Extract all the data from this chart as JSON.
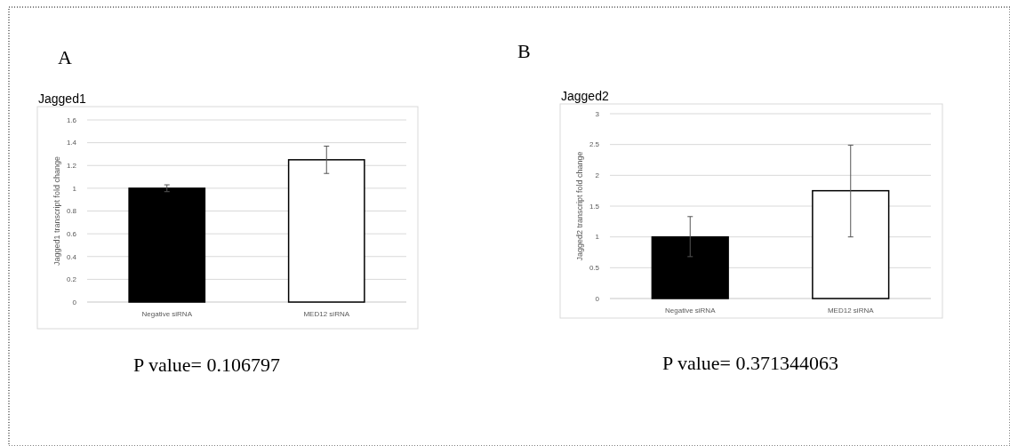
{
  "chart_data": [
    {
      "type": "bar",
      "title": "Jagged1",
      "ylabel": "Jagged1 transcript fold change",
      "categories": [
        "Negative siRNA",
        "MED12 siRNA"
      ],
      "values": [
        1.0,
        1.25
      ],
      "colors": [
        "#000000",
        "#ffffff"
      ],
      "errors": [
        [
          0.97,
          1.03
        ],
        [
          1.13,
          1.37
        ]
      ],
      "ylim": [
        0,
        1.6
      ],
      "yticks": [
        0,
        0.2,
        0.4,
        0.6,
        0.8,
        1,
        1.2,
        1.4,
        1.6
      ],
      "grid": "y",
      "annotations": [
        "A",
        "P value= 0.106797"
      ]
    },
    {
      "type": "bar",
      "title": "Jagged2",
      "ylabel": "Jagged2 transcript fold change",
      "categories": [
        "Negative siRNA",
        "MED12 siRNA"
      ],
      "values": [
        1.0,
        1.75
      ],
      "colors": [
        "#000000",
        "#ffffff"
      ],
      "errors": [
        [
          0.68,
          1.33
        ],
        [
          1.0,
          2.49
        ]
      ],
      "ylim": [
        0,
        3
      ],
      "yticks": [
        0,
        0.5,
        1,
        1.5,
        2,
        2.5,
        3
      ],
      "grid": "y",
      "annotations": [
        "B",
        "P value= 0.371344063"
      ]
    }
  ]
}
